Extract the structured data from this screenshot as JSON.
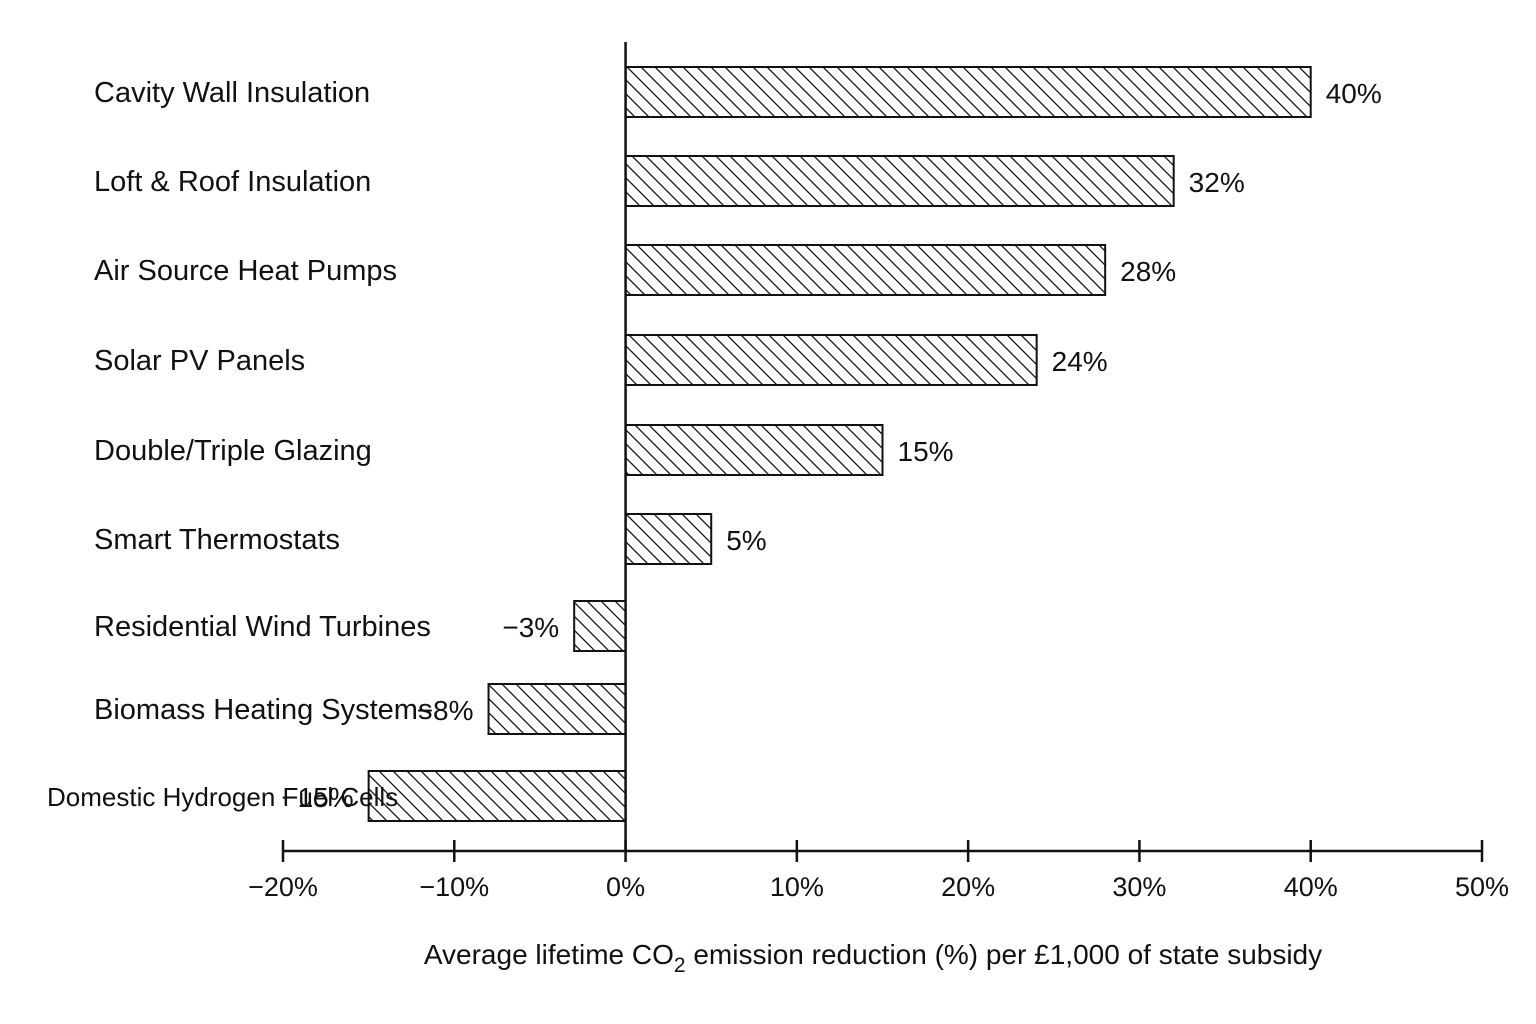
{
  "chart_data": {
    "type": "bar",
    "orientation": "horizontal",
    "categories": [
      "Cavity Wall Insulation",
      "Loft & Roof Insulation",
      "Air Source Heat Pumps",
      "Solar PV Panels",
      "Double/Triple Glazing",
      "Smart Thermostats",
      "Residential Wind Turbines",
      "Biomass Heating Systems",
      "Domestic Hydrogen Fuel Cells"
    ],
    "values": [
      40,
      32,
      28,
      24,
      15,
      5,
      -3,
      -8,
      -15
    ],
    "value_labels": [
      "40%",
      "32%",
      "28%",
      "24%",
      "15%",
      "5%",
      "−3%",
      "−8%",
      "−15%"
    ],
    "xlabel": {
      "before": "Average lifetime CO",
      "subscript": "2",
      "after": " emission reduction (%) per £1,000 of state subsidy"
    },
    "xlim": [
      -20,
      50
    ],
    "xticks": [
      -20,
      -10,
      0,
      10,
      20,
      30,
      40,
      50
    ],
    "xtick_labels": [
      "−20%",
      "−10%",
      "0%",
      "10%",
      "20%",
      "30%",
      "40%",
      "50%"
    ],
    "bar_fill": "diagonal hatch",
    "grid": false,
    "legend": "none",
    "colors": {
      "ink": "#111111",
      "background": "#ffffff"
    }
  }
}
